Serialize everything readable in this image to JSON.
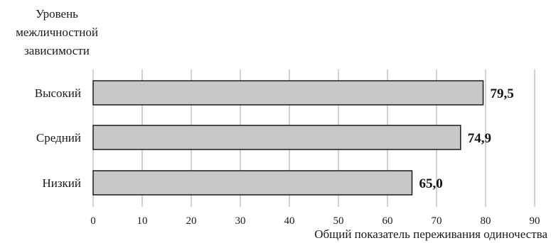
{
  "chart_data": {
    "type": "bar",
    "orientation": "horizontal",
    "ylabel_lines": [
      "Уровень",
      "межличностной",
      "зависимости"
    ],
    "xlabel": "Общий показатель переживания одиночества",
    "categories": [
      "Высокий",
      "Средний",
      "Низкий"
    ],
    "values": [
      79.5,
      74.9,
      65.0
    ],
    "value_labels": [
      "79,5",
      "74,9",
      "65,0"
    ],
    "xlim": [
      0,
      90
    ],
    "xticks": [
      0,
      10,
      20,
      30,
      40,
      50,
      60,
      70,
      80,
      90
    ],
    "grid": "vertical",
    "colors": {
      "bar": "#c8c8c8",
      "bar_edge": "#1a1a1a",
      "grid": "#a6a6a6"
    }
  }
}
